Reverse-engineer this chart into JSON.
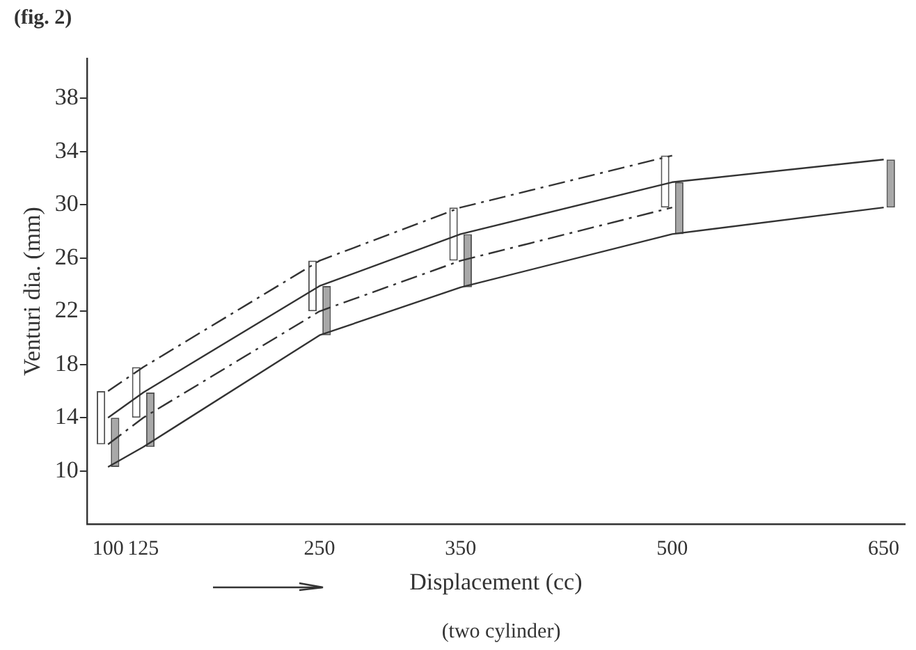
{
  "chart_data": {
    "type": "bar",
    "title": "(fig. 2)",
    "xlabel": "Displacement (cc)",
    "ylabel": "Venturi dia. (mm)",
    "annotations": [
      "(two cylinder)"
    ],
    "x": [
      100,
      125,
      250,
      350,
      500,
      650
    ],
    "series": [
      {
        "color": "#ffffff",
        "base": [
          12,
          14,
          22,
          25.8,
          29.8,
          null
        ],
        "values": [
          4,
          3.8,
          3.8,
          4,
          3.9,
          null
        ]
      },
      {
        "color": "#a8a8a8",
        "base": [
          10.3,
          11.8,
          20.2,
          23.8,
          27.8,
          29.8
        ],
        "values": [
          3.7,
          4.1,
          3.7,
          4,
          3.9,
          3.6
        ]
      },
      {
        "type": "line",
        "color": "#333333",
        "line_style": "dashed",
        "x": [
          100,
          125,
          250,
          350,
          500
        ],
        "values": [
          16,
          17.8,
          25.8,
          29.8,
          33.7
        ]
      },
      {
        "type": "line",
        "color": "#333333",
        "line_style": "dashed",
        "x": [
          100,
          125,
          250,
          350,
          500
        ],
        "values": [
          12,
          14,
          22,
          25.8,
          29.8
        ]
      },
      {
        "type": "line",
        "color": "#333333",
        "line_style": "solid",
        "x": [
          100,
          125,
          250,
          350,
          500,
          650
        ],
        "values": [
          14,
          15.9,
          23.9,
          27.8,
          31.7,
          33.4
        ]
      },
      {
        "type": "line",
        "color": "#333333",
        "line_style": "solid",
        "x": [
          100,
          125,
          250,
          350,
          500,
          650
        ],
        "values": [
          10.3,
          11.8,
          20.2,
          23.8,
          27.8,
          29.8
        ]
      }
    ],
    "xlim": [
      85,
      665
    ],
    "xticks": [
      100,
      125,
      250,
      350,
      500,
      650
    ],
    "ylim": [
      6,
      41
    ],
    "yticks": [
      10,
      14,
      18,
      22,
      26,
      30,
      34,
      38
    ],
    "grid": false,
    "legend": false,
    "marker": "none"
  }
}
